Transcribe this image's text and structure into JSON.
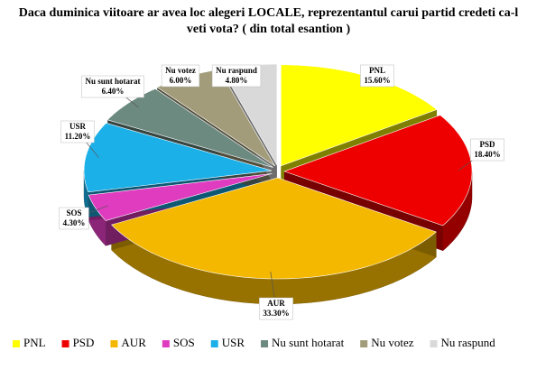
{
  "chart_data": {
    "type": "pie3d",
    "title": "Daca duminica viitoare ar avea loc alegeri LOCALE, reprezentantul carui partid credeti ca-l veti vota? ( din total esantion )",
    "categories": [
      "PNL",
      "PSD",
      "AUR",
      "SOS",
      "USR",
      "Nu sunt hotarat",
      "Nu votez",
      "Nu raspund"
    ],
    "values": [
      15.6,
      18.4,
      33.3,
      4.3,
      11.2,
      6.4,
      6.0,
      4.8
    ],
    "value_labels": [
      "15.60%",
      "18.40%",
      "33.30%",
      "4.30%",
      "11.20%",
      "6.40%",
      "6.00%",
      "4.80%"
    ],
    "colors": [
      "#ffff00",
      "#ee0000",
      "#f5b800",
      "#e03cc0",
      "#1cb0e8",
      "#6c8a80",
      "#a29c7a",
      "#d9d9d9"
    ],
    "legend": "bottom"
  }
}
